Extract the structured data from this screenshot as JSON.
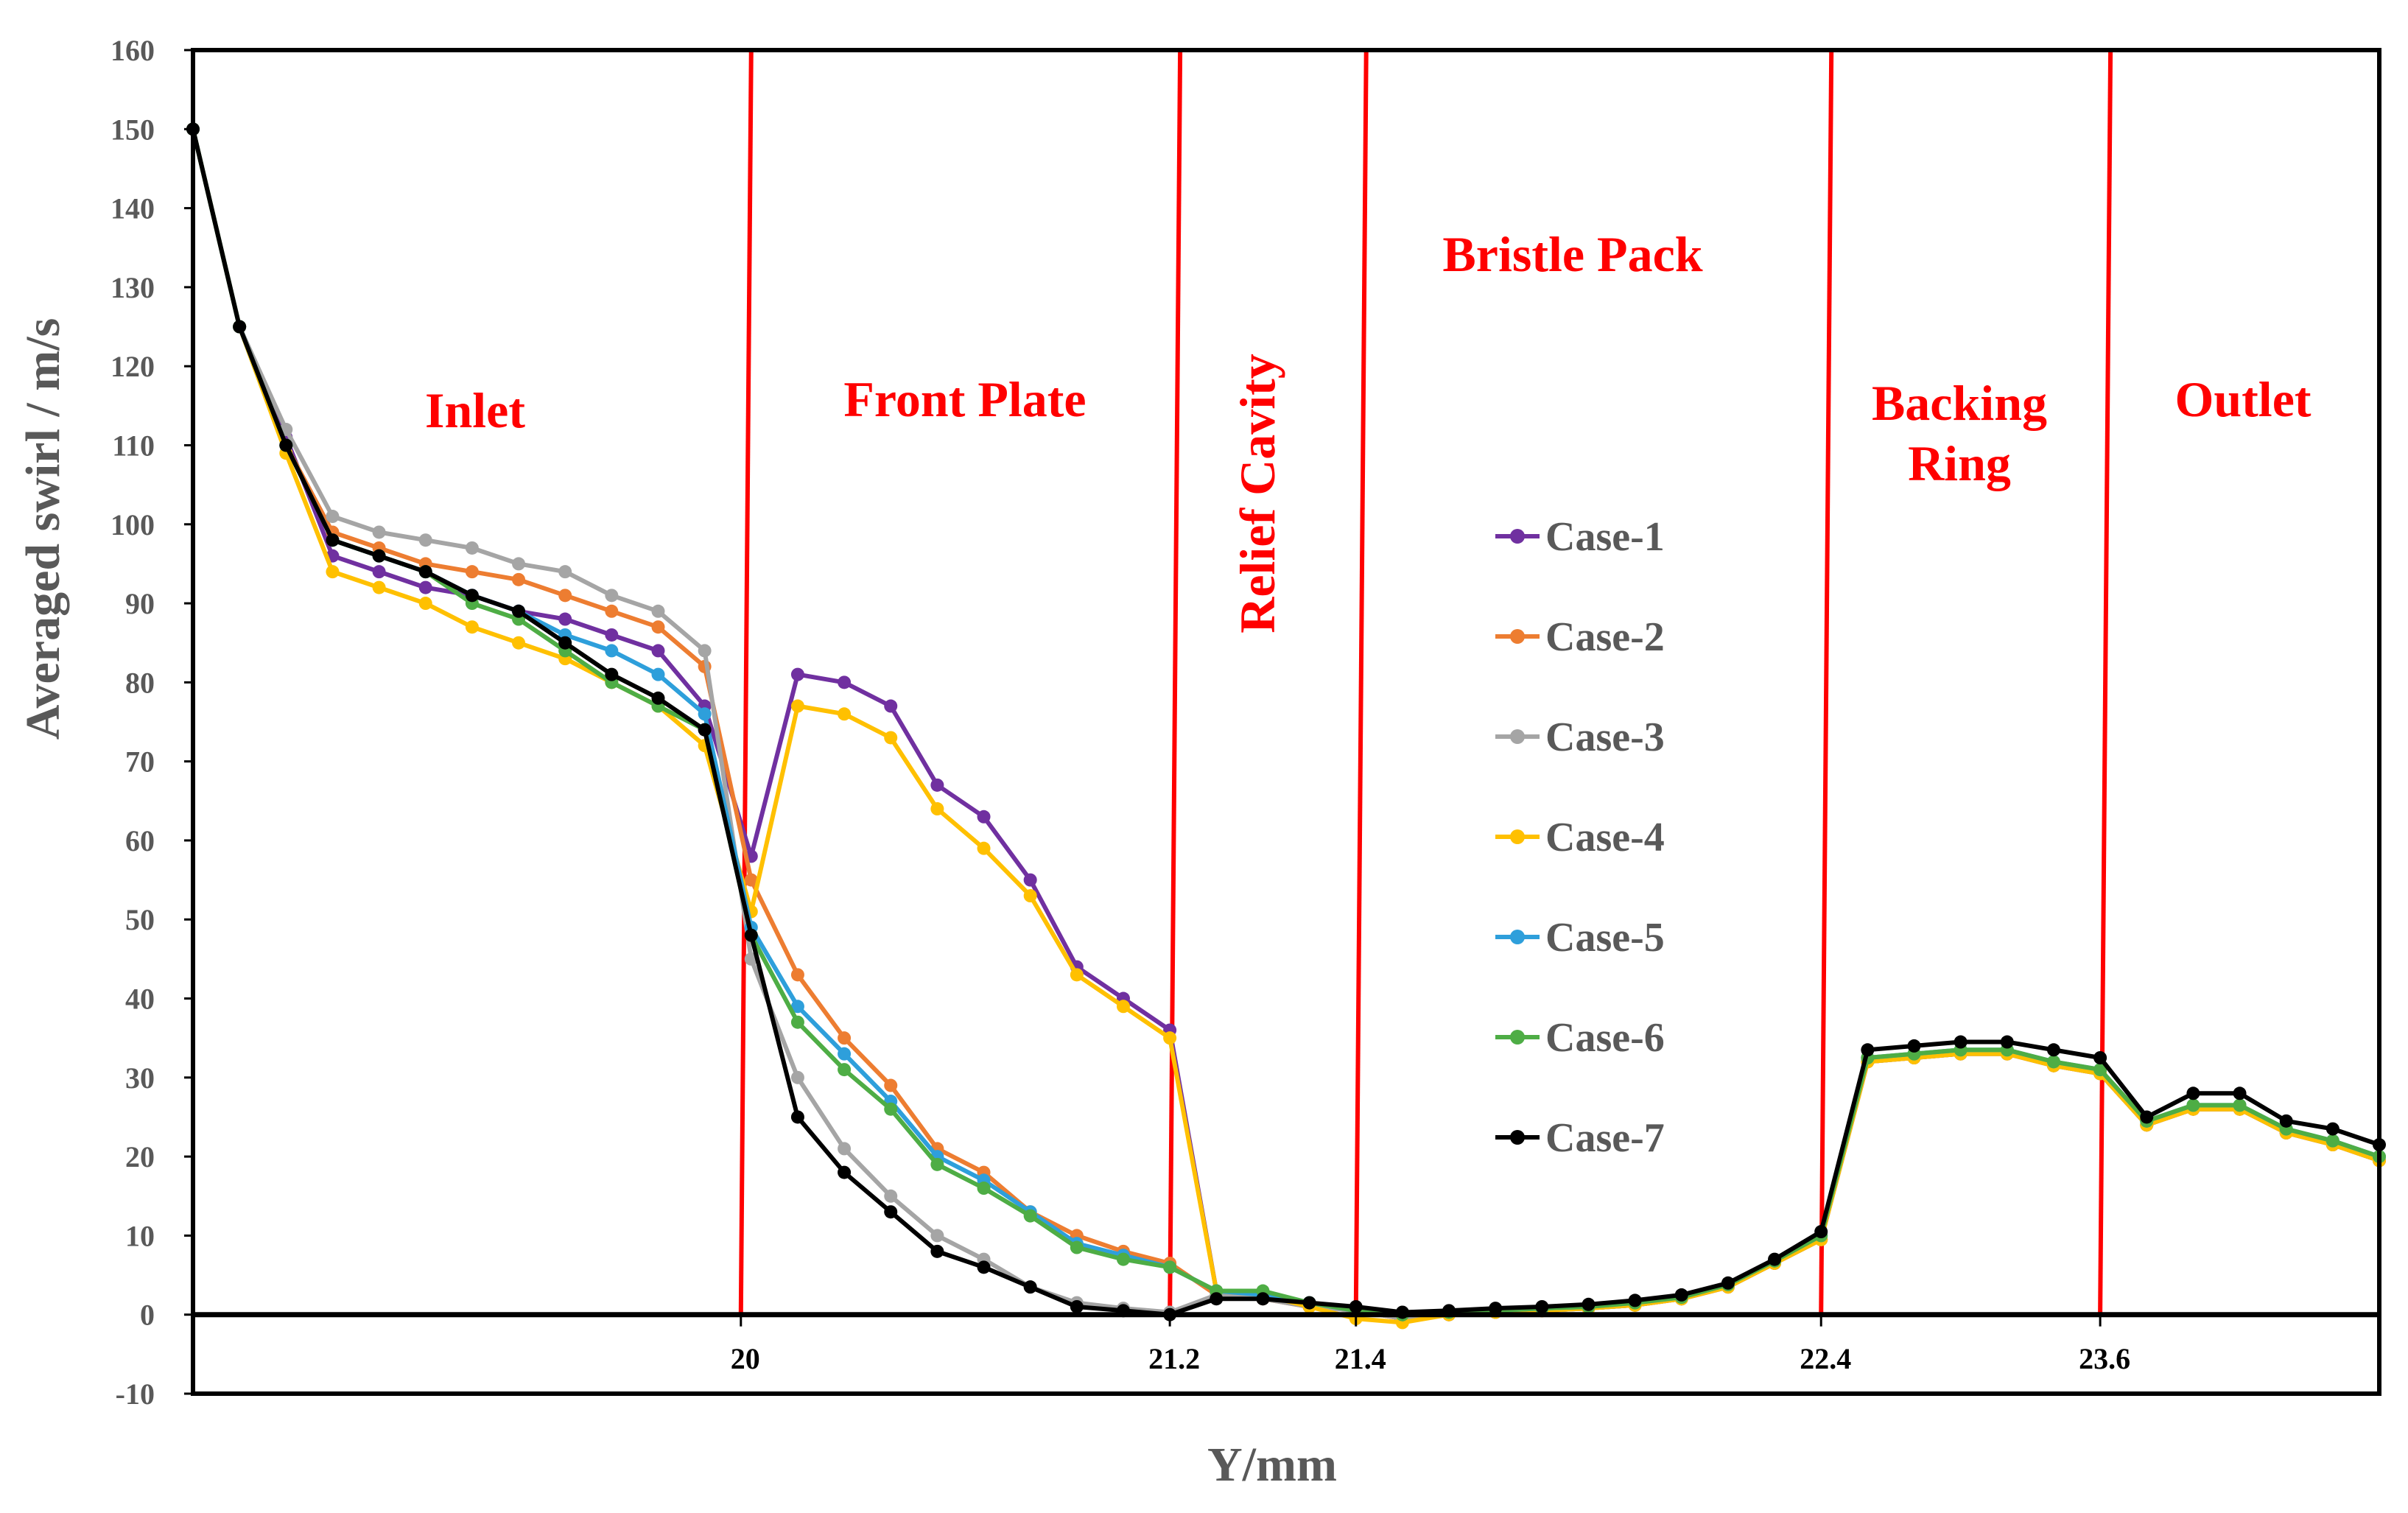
{
  "chart_data": {
    "type": "line",
    "title": "",
    "xlabel": "Y/mm",
    "ylabel": "Averaged swirl  /  m/s",
    "ylim": [
      -10,
      160
    ],
    "ytick_labels": [
      "-10",
      "0",
      "10",
      "20",
      "30",
      "40",
      "50",
      "60",
      "70",
      "80",
      "90",
      "100",
      "110",
      "120",
      "130",
      "140",
      "150",
      "160"
    ],
    "xtick_labels": [
      "20",
      "21.2",
      "21.4",
      "22.4",
      "23.6"
    ],
    "boundary_ticks": [
      12,
      21,
      25,
      35,
      41
    ],
    "boundary_color": "#ff0000",
    "regions": [
      {
        "label": "Inlet"
      },
      {
        "label": "Front Plate"
      },
      {
        "label": "Relief Cavity"
      },
      {
        "label": "Bristle Pack"
      },
      {
        "label": "Backing Ring"
      },
      {
        "label": "Outlet"
      }
    ],
    "x_count": 48,
    "series": [
      {
        "name": "Case-1",
        "color": "#7030a0",
        "values": [
          150,
          125,
          111,
          96,
          94,
          92,
          91,
          89,
          88,
          86,
          84,
          77,
          58,
          81,
          80,
          77,
          67,
          63,
          55,
          44,
          40,
          36,
          3,
          2.5,
          1.5,
          0.5,
          -0.5,
          0,
          0.3,
          0.5,
          0.8,
          1.2,
          2,
          3.5,
          6.5,
          9.5,
          32,
          32.5,
          33,
          33,
          31.5,
          30.5,
          24,
          26,
          26,
          23,
          21.5,
          19.5
        ]
      },
      {
        "name": "Case-2",
        "color": "#ed7d31",
        "values": [
          150,
          125,
          110,
          99,
          97,
          95,
          94,
          93,
          91,
          89,
          87,
          82,
          55,
          43,
          35,
          29,
          21,
          18,
          13,
          10,
          8,
          6.5,
          2.5,
          2,
          1,
          0.5,
          -0.5,
          0,
          0.3,
          0.5,
          0.8,
          1.2,
          2,
          3.5,
          6.5,
          9.5,
          32,
          32.5,
          33,
          33,
          31.5,
          30.5,
          24,
          26,
          26,
          23,
          21.5,
          19.5
        ]
      },
      {
        "name": "Case-3",
        "color": "#a5a5a5",
        "values": [
          150,
          125,
          112,
          101,
          99,
          98,
          97,
          95,
          94,
          91,
          89,
          84,
          45,
          30,
          21,
          15,
          10,
          7,
          3.5,
          1.5,
          0.8,
          0.3,
          2.5,
          2,
          1,
          0.5,
          -0.5,
          0,
          0.3,
          0.5,
          0.8,
          1.2,
          2,
          3.5,
          6.5,
          9.5,
          32,
          32.5,
          33,
          33,
          31.5,
          30.5,
          24,
          26,
          26,
          23,
          21.5,
          19.5
        ]
      },
      {
        "name": "Case-4",
        "color": "#ffc000",
        "values": [
          150,
          125,
          109,
          94,
          92,
          90,
          87,
          85,
          83,
          80,
          77,
          72,
          51,
          77,
          76,
          73,
          64,
          59,
          53,
          43,
          39,
          35,
          3,
          2.5,
          1,
          -0.5,
          -1,
          0,
          0.3,
          0.5,
          0.8,
          1.2,
          2,
          3.5,
          6.5,
          9.5,
          32,
          32.5,
          33,
          33,
          31.5,
          30.5,
          24,
          26,
          26,
          23,
          21.5,
          19.5
        ]
      },
      {
        "name": "Case-5",
        "color": "#2e9fdb",
        "values": [
          150,
          125,
          110,
          98,
          96,
          94,
          91,
          89,
          86,
          84,
          81,
          76,
          49,
          39,
          33,
          27,
          20,
          17,
          13,
          9,
          7.5,
          6,
          3,
          2.5,
          1.5,
          0.5,
          0,
          0.3,
          0.5,
          0.8,
          1,
          1.5,
          2.2,
          3.8,
          6.8,
          10,
          32.5,
          33,
          33.5,
          33.5,
          32,
          31,
          24.5,
          26.5,
          26.5,
          23.5,
          22,
          20
        ]
      },
      {
        "name": "Case-6",
        "color": "#4ead45",
        "values": [
          150,
          125,
          110,
          98,
          96,
          94,
          90,
          88,
          84,
          80,
          77,
          74,
          48,
          37,
          31,
          26,
          19,
          16,
          12.5,
          8.5,
          7,
          6,
          3,
          3,
          1.5,
          0.5,
          0,
          0.3,
          0.5,
          0.8,
          1,
          1.5,
          2.2,
          3.8,
          6.8,
          10,
          32.5,
          33,
          33.5,
          33.5,
          32,
          31,
          24.5,
          26.5,
          26.5,
          23.5,
          22,
          20
        ]
      },
      {
        "name": "Case-7",
        "color": "#000000",
        "values": [
          150,
          125,
          110,
          98,
          96,
          94,
          91,
          89,
          85,
          81,
          78,
          74,
          48,
          25,
          18,
          13,
          8,
          6,
          3.5,
          1,
          0.5,
          0,
          2,
          2,
          1.5,
          1,
          0.3,
          0.5,
          0.8,
          1,
          1.3,
          1.8,
          2.5,
          4,
          7,
          10.5,
          33.5,
          34,
          34.5,
          34.5,
          33.5,
          32.5,
          25,
          28,
          28,
          24.5,
          23.5,
          21.5
        ]
      }
    ]
  }
}
